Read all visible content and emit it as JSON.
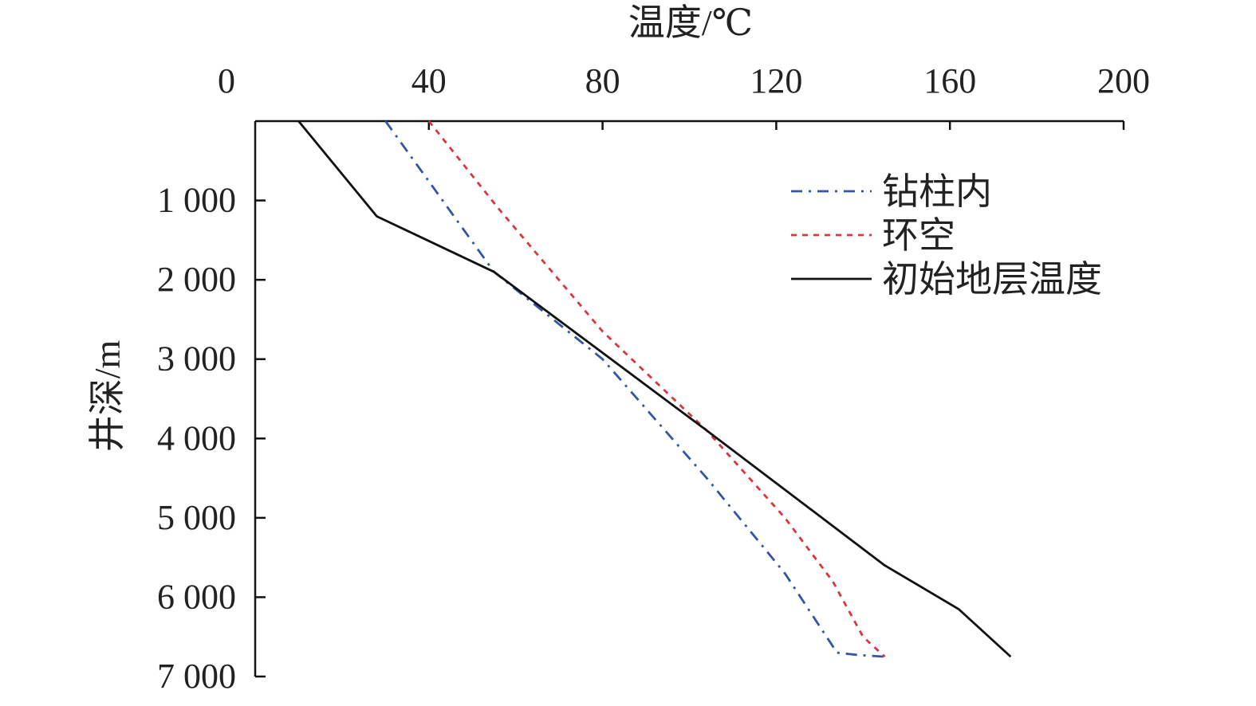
{
  "chart_data": {
    "type": "line",
    "xlabel": "温度/℃",
    "ylabel": "井深/m",
    "xlim": [
      0,
      200
    ],
    "ylim": [
      0,
      7000
    ],
    "x_axis_position": "top",
    "y_axis_inverted": true,
    "xticks": [
      0,
      40,
      80,
      120,
      160,
      200
    ],
    "xtick_labels": [
      "0",
      "40",
      "80",
      "120",
      "160",
      "200"
    ],
    "yticks": [
      1000,
      2000,
      3000,
      4000,
      5000,
      6000,
      7000
    ],
    "ytick_labels": [
      "1 000",
      "2 000",
      "3 000",
      "4 000",
      "5 000",
      "6 000",
      "7 000"
    ],
    "grid": false,
    "legend_position": "top-right",
    "series": [
      {
        "name": "钻柱内",
        "color": "#3355a8",
        "dash": "dash-dot",
        "points": [
          [
            30,
            0
          ],
          [
            55,
            1900
          ],
          [
            80,
            3000
          ],
          [
            104,
            4500
          ],
          [
            122,
            5700
          ],
          [
            134,
            6700
          ],
          [
            139,
            6730
          ],
          [
            145,
            6750
          ]
        ]
      },
      {
        "name": "环空",
        "color": "#d9363e",
        "dash": "dotted",
        "points": [
          [
            40,
            0
          ],
          [
            56,
            1100
          ],
          [
            80,
            2650
          ],
          [
            104,
            3900
          ],
          [
            122,
            5000
          ],
          [
            133,
            5800
          ],
          [
            140,
            6500
          ],
          [
            145,
            6750
          ]
        ]
      },
      {
        "name": "初始地层温度",
        "color": "#111111",
        "dash": "solid",
        "points": [
          [
            10,
            0
          ],
          [
            28,
            1200
          ],
          [
            55,
            1900
          ],
          [
            104,
            3900
          ],
          [
            145,
            5600
          ],
          [
            162,
            6150
          ],
          [
            174,
            6750
          ]
        ]
      }
    ]
  }
}
